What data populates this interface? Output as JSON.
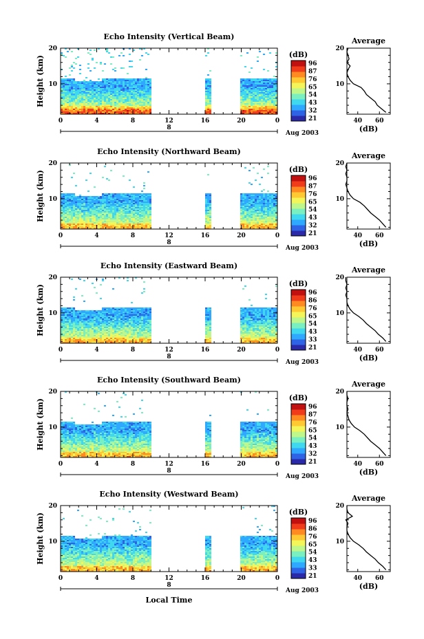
{
  "figure": {
    "xlabel": "Local Time",
    "date_label": "Aug 2003",
    "cbar_title": "(dB)",
    "avg_title": "Average",
    "avg_xlabel": "(dB)",
    "ylabel": "Height (km)",
    "colormap": [
      "#2a2aa8",
      "#2f63e6",
      "#2fa8ff",
      "#3fd8ef",
      "#7aefc0",
      "#bff78a",
      "#f3f558",
      "#ffc933",
      "#ff8a22",
      "#f03c1a",
      "#c01010"
    ]
  },
  "chart_data": [
    {
      "type": "heatmap",
      "title": "Echo Intensity (Vertical Beam)",
      "x_ticks": [
        "0",
        "4",
        "8",
        "12",
        "16",
        "20",
        "0"
      ],
      "x_range": [
        0,
        24
      ],
      "y_ticks": [
        "10",
        "20"
      ],
      "y_range": [
        1.5,
        20
      ],
      "day_marker": "8",
      "data_gaps": [
        [
          10,
          16
        ],
        [
          16.6,
          20
        ]
      ],
      "colorbar": {
        "ticks": [
          "96",
          "87",
          "76",
          "65",
          "54",
          "43",
          "32",
          "21"
        ],
        "range": [
          21,
          96
        ]
      },
      "average_profile": {
        "title": "Average",
        "xlabel": "(dB)",
        "x_ticks": [
          "40",
          "60"
        ],
        "x_range": [
          30,
          70
        ],
        "y_ticks": [
          "10",
          "20"
        ],
        "heights": [
          2,
          3,
          4,
          5,
          6,
          7,
          8,
          9,
          10,
          11,
          12,
          13,
          14,
          15,
          16,
          17,
          18,
          19,
          20
        ],
        "values": [
          66,
          62,
          58,
          56,
          52,
          48,
          46,
          43,
          36,
          33,
          31,
          30,
          31,
          33,
          30,
          32,
          31,
          30,
          31
        ]
      }
    },
    {
      "type": "heatmap",
      "title": "Echo Intensity (Northward Beam)",
      "x_ticks": [
        "0",
        "4",
        "8",
        "12",
        "16",
        "20",
        "0"
      ],
      "x_range": [
        0,
        24
      ],
      "y_ticks": [
        "10",
        "20"
      ],
      "y_range": [
        1.5,
        20
      ],
      "day_marker": "8",
      "data_gaps": [
        [
          10,
          16
        ],
        [
          16.6,
          20
        ]
      ],
      "colorbar": {
        "ticks": [
          "96",
          "87",
          "76",
          "65",
          "54",
          "43",
          "32",
          "21"
        ],
        "range": [
          21,
          96
        ]
      },
      "average_profile": {
        "title": "Average",
        "xlabel": "(dB)",
        "x_ticks": [
          "40",
          "60"
        ],
        "x_range": [
          30,
          70
        ],
        "y_ticks": [
          "10",
          "20"
        ],
        "heights": [
          2,
          3,
          4,
          5,
          6,
          7,
          8,
          9,
          10,
          11,
          12,
          13,
          14,
          15,
          16,
          17,
          18,
          19,
          20
        ],
        "values": [
          66,
          63,
          60,
          56,
          52,
          49,
          46,
          42,
          36,
          33,
          31,
          30,
          29,
          30,
          30,
          29,
          30,
          29,
          30
        ]
      }
    },
    {
      "type": "heatmap",
      "title": "Echo Intensity (Eastward Beam)",
      "x_ticks": [
        "0",
        "4",
        "8",
        "12",
        "16",
        "20",
        "0"
      ],
      "x_range": [
        0,
        24
      ],
      "y_ticks": [
        "10",
        "20"
      ],
      "y_range": [
        1.5,
        20
      ],
      "day_marker": "8",
      "data_gaps": [
        [
          10,
          16
        ],
        [
          16.6,
          20
        ]
      ],
      "colorbar": {
        "ticks": [
          "96",
          "86",
          "76",
          "65",
          "54",
          "43",
          "33",
          "21"
        ],
        "range": [
          21,
          96
        ]
      },
      "average_profile": {
        "title": "Average",
        "xlabel": "(dB)",
        "x_ticks": [
          "40",
          "60"
        ],
        "x_range": [
          30,
          70
        ],
        "y_ticks": [
          "10",
          "20"
        ],
        "heights": [
          2,
          3,
          4,
          5,
          6,
          7,
          8,
          9,
          10,
          11,
          12,
          13,
          14,
          15,
          16,
          17,
          18,
          19,
          20
        ],
        "values": [
          66,
          63,
          59,
          56,
          52,
          48,
          45,
          41,
          36,
          33,
          31,
          30,
          30,
          29,
          30,
          29,
          30,
          29,
          29
        ]
      }
    },
    {
      "type": "heatmap",
      "title": "Echo Intensity (Southward Beam)",
      "x_ticks": [
        "0",
        "4",
        "8",
        "12",
        "16",
        "20",
        "0"
      ],
      "x_range": [
        0,
        24
      ],
      "y_ticks": [
        "10",
        "20"
      ],
      "y_range": [
        1.5,
        20
      ],
      "day_marker": "8",
      "data_gaps": [
        [
          10,
          16
        ],
        [
          16.6,
          20
        ]
      ],
      "colorbar": {
        "ticks": [
          "96",
          "87",
          "76",
          "65",
          "54",
          "43",
          "32",
          "21"
        ],
        "range": [
          21,
          96
        ]
      },
      "average_profile": {
        "title": "Average",
        "xlabel": "(dB)",
        "x_ticks": [
          "40",
          "60"
        ],
        "x_range": [
          30,
          70
        ],
        "y_ticks": [
          "10",
          "20"
        ],
        "heights": [
          2,
          3,
          4,
          5,
          6,
          7,
          8,
          9,
          10,
          11,
          12,
          13,
          14,
          15,
          16,
          17,
          18,
          19,
          20
        ],
        "values": [
          66,
          63,
          60,
          56,
          52,
          49,
          46,
          42,
          37,
          34,
          32,
          31,
          30,
          31,
          30,
          30,
          31,
          30,
          30
        ]
      }
    },
    {
      "type": "heatmap",
      "title": "Echo Intensity (Westward Beam)",
      "x_ticks": [
        "0",
        "4",
        "8",
        "12",
        "16",
        "20",
        "0"
      ],
      "x_range": [
        0,
        24
      ],
      "y_ticks": [
        "10",
        "20"
      ],
      "y_range": [
        1.5,
        20
      ],
      "day_marker": "8",
      "data_gaps": [
        [
          10,
          16
        ],
        [
          16.6,
          20
        ]
      ],
      "colorbar": {
        "ticks": [
          "96",
          "86",
          "76",
          "65",
          "54",
          "43",
          "33",
          "21"
        ],
        "range": [
          21,
          96
        ]
      },
      "average_profile": {
        "title": "Average",
        "xlabel": "(dB)",
        "x_ticks": [
          "40",
          "60"
        ],
        "x_range": [
          30,
          70
        ],
        "y_ticks": [
          "10",
          "20"
        ],
        "heights": [
          2,
          3,
          4,
          5,
          6,
          7,
          8,
          9,
          10,
          11,
          12,
          13,
          14,
          15,
          16,
          17,
          18,
          19,
          20
        ],
        "values": [
          66,
          63,
          59,
          56,
          52,
          48,
          45,
          41,
          36,
          33,
          31,
          30,
          30,
          31,
          29,
          35,
          31,
          30,
          30
        ]
      }
    }
  ]
}
